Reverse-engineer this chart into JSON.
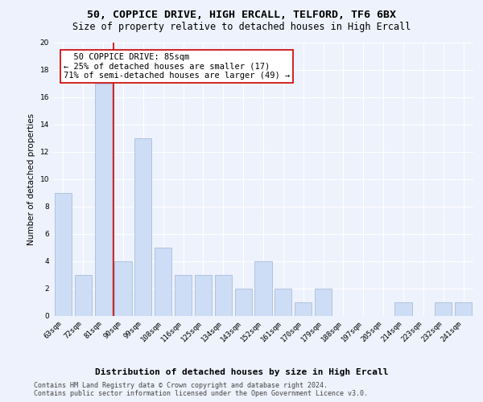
{
  "title1": "50, COPPICE DRIVE, HIGH ERCALL, TELFORD, TF6 6BX",
  "title2": "Size of property relative to detached houses in High Ercall",
  "xlabel": "Distribution of detached houses by size in High Ercall",
  "ylabel": "Number of detached properties",
  "categories": [
    "63sqm",
    "72sqm",
    "81sqm",
    "90sqm",
    "99sqm",
    "108sqm",
    "116sqm",
    "125sqm",
    "134sqm",
    "143sqm",
    "152sqm",
    "161sqm",
    "170sqm",
    "179sqm",
    "188sqm",
    "197sqm",
    "205sqm",
    "214sqm",
    "223sqm",
    "232sqm",
    "241sqm"
  ],
  "values": [
    9,
    3,
    17,
    4,
    13,
    5,
    3,
    3,
    3,
    2,
    4,
    2,
    1,
    2,
    0,
    0,
    0,
    1,
    0,
    1,
    1
  ],
  "bar_color": "#ccddf5",
  "bar_edge_color": "#aabcdc",
  "annotation_text": "  50 COPPICE DRIVE: 85sqm\n← 25% of detached houses are smaller (17)\n71% of semi-detached houses are larger (49) →",
  "annotation_box_color": "white",
  "annotation_box_edge": "#cc0000",
  "ylim": [
    0,
    20
  ],
  "yticks": [
    0,
    2,
    4,
    6,
    8,
    10,
    12,
    14,
    16,
    18,
    20
  ],
  "red_line_color": "#cc0000",
  "footer_text": "Contains HM Land Registry data © Crown copyright and database right 2024.\nContains public sector information licensed under the Open Government Licence v3.0.",
  "background_color": "#eef2fc",
  "grid_color": "white",
  "title1_fontsize": 9.5,
  "title2_fontsize": 8.5,
  "xlabel_fontsize": 8,
  "ylabel_fontsize": 7.5,
  "tick_fontsize": 6.5,
  "annotation_fontsize": 7.5,
  "footer_fontsize": 6
}
